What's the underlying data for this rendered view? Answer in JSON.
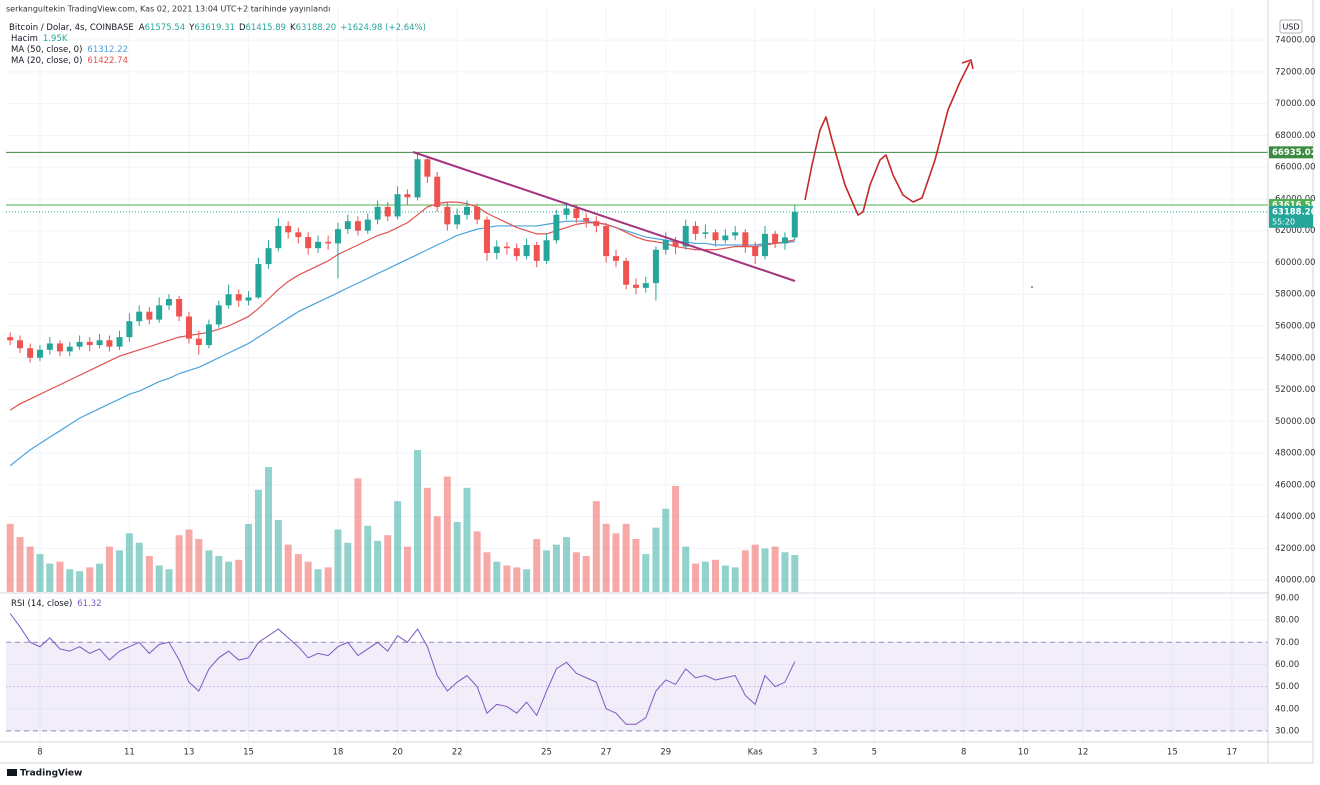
{
  "chart_data": {
    "type": "candlestick",
    "header": "serkangultekin TradingView.com, Kas 02, 2021 13:04 UTC+2 tarihinde yayınlandı",
    "title": "Bitcoin / Dolar, 4s, COINBASE",
    "ohlc_legend": [
      {
        "key": "A",
        "value": "61575.54"
      },
      {
        "key": "Y",
        "value": "63619.31"
      },
      {
        "key": "D",
        "value": "61415.89"
      },
      {
        "key": "K",
        "value": "63188.20"
      }
    ],
    "change": "+1624.98 (+2.64%)",
    "currency": "USD",
    "brand": "TradingView",
    "up_color": "#26a69a",
    "down_color": "#ef5350",
    "x": [
      7,
      7.33,
      7.67,
      8,
      8.33,
      8.67,
      9,
      9.33,
      9.67,
      10,
      10.33,
      10.67,
      11,
      11.33,
      11.67,
      12,
      12.33,
      12.67,
      13,
      13.33,
      13.67,
      14,
      14.33,
      14.67,
      15,
      15.33,
      15.67,
      16,
      16.33,
      16.67,
      17,
      17.33,
      17.67,
      18,
      18.33,
      18.67,
      19,
      19.33,
      19.67,
      20,
      20.33,
      20.67,
      21,
      21.33,
      21.67,
      22,
      22.33,
      22.67,
      23,
      23.33,
      23.67,
      24,
      24.33,
      24.67,
      25,
      25.33,
      25.67,
      26,
      26.33,
      26.67,
      27,
      27.33,
      27.67,
      28,
      28.33,
      28.67,
      29,
      29.33,
      29.67,
      30,
      30.33,
      30.67,
      31,
      31.33,
      31.67,
      32,
      32.33,
      32.67,
      33,
      33.33
    ],
    "open": [
      55300,
      55100,
      54600,
      54000,
      54500,
      54900,
      54400,
      54700,
      55000,
      54800,
      55100,
      54700,
      55300,
      56300,
      56900,
      56400,
      57300,
      57700,
      56600,
      55200,
      54800,
      56100,
      57300,
      58000,
      57600,
      57800,
      59900,
      60900,
      62300,
      61900,
      61600,
      60900,
      61300,
      61200,
      62100,
      62600,
      62000,
      62700,
      63500,
      62900,
      64300,
      64100,
      66500,
      65400,
      63500,
      62400,
      63000,
      63500,
      62700,
      60600,
      61000,
      60900,
      60400,
      61100,
      60100,
      61400,
      63000,
      63400,
      62800,
      62600,
      62300,
      60400,
      60100,
      58600,
      58400,
      58700,
      60800,
      61400,
      61000,
      62300,
      61800,
      61900,
      61400,
      61700,
      61900,
      61000,
      60400,
      61800,
      61200,
      61575.54
    ],
    "high": [
      55600,
      55400,
      54900,
      54800,
      55300,
      55100,
      55000,
      55400,
      55300,
      55500,
      55400,
      55700,
      56800,
      57300,
      57200,
      57800,
      58000,
      57900,
      56900,
      55700,
      56400,
      57600,
      58600,
      58300,
      58200,
      60300,
      61400,
      62800,
      62600,
      62200,
      61900,
      61700,
      61700,
      62500,
      63000,
      62900,
      63100,
      63900,
      63800,
      64800,
      64600,
      66950,
      66700,
      65700,
      63800,
      63400,
      63900,
      63700,
      62900,
      61400,
      61300,
      61200,
      61500,
      61300,
      61800,
      63300,
      63800,
      63600,
      63100,
      62900,
      62500,
      60800,
      60300,
      59000,
      59100,
      61000,
      61900,
      61600,
      62700,
      62600,
      62400,
      62100,
      62100,
      62300,
      62100,
      61300,
      62300,
      62000,
      61900,
      63619.31
    ],
    "low": [
      54800,
      54300,
      53700,
      53800,
      54200,
      54100,
      54100,
      54500,
      54400,
      54600,
      54400,
      54500,
      55000,
      56000,
      56100,
      56200,
      57000,
      56300,
      54900,
      54200,
      54600,
      55900,
      57100,
      57200,
      57300,
      57700,
      59600,
      60700,
      61500,
      61200,
      60500,
      60600,
      60800,
      59000,
      61800,
      61700,
      61800,
      62400,
      62600,
      62700,
      63600,
      63900,
      65000,
      63200,
      62000,
      62100,
      62700,
      62400,
      60100,
      60200,
      60500,
      60100,
      60200,
      59700,
      59900,
      61200,
      62700,
      62500,
      62200,
      61900,
      60000,
      59700,
      58300,
      58000,
      58100,
      57600,
      60500,
      60500,
      60800,
      61400,
      61500,
      61000,
      61200,
      61400,
      60600,
      59900,
      60200,
      60900,
      60800,
      61415.89
    ],
    "close": [
      55100,
      54600,
      54000,
      54500,
      54900,
      54400,
      54700,
      55000,
      54800,
      55100,
      54700,
      55300,
      56300,
      56900,
      56400,
      57300,
      57700,
      56600,
      55200,
      54800,
      56100,
      57300,
      58000,
      57600,
      57800,
      59900,
      60900,
      62300,
      61900,
      61600,
      60900,
      61300,
      61200,
      62100,
      62600,
      62000,
      62700,
      63500,
      62900,
      64300,
      64100,
      66500,
      65400,
      63500,
      62400,
      63000,
      63500,
      62700,
      60600,
      61000,
      60900,
      60400,
      61100,
      60100,
      61400,
      63000,
      63400,
      62800,
      62600,
      62300,
      60400,
      60100,
      58600,
      58400,
      58700,
      60800,
      61400,
      61000,
      62300,
      61800,
      61900,
      61400,
      61700,
      61900,
      61000,
      60400,
      61800,
      61200,
      61575.54,
      63188.2
    ],
    "volume": {
      "name": "Hacim",
      "legend_value": "1.95K",
      "values": [
        3600,
        2900,
        2400,
        2000,
        1500,
        1600,
        1200,
        1100,
        1300,
        1500,
        2400,
        2200,
        3100,
        2600,
        1900,
        1400,
        1200,
        3000,
        3300,
        2800,
        2200,
        1900,
        1600,
        1700,
        3600,
        5400,
        6600,
        3800,
        2500,
        2000,
        1600,
        1200,
        1300,
        3300,
        2600,
        6000,
        3500,
        2700,
        3000,
        4800,
        2400,
        7500,
        5500,
        4000,
        6100,
        3700,
        5500,
        3200,
        2100,
        1600,
        1400,
        1300,
        1200,
        2800,
        2200,
        2500,
        2900,
        2100,
        1900,
        4800,
        3600,
        3100,
        3600,
        2800,
        2000,
        3400,
        4400,
        5600,
        2400,
        1500,
        1600,
        1700,
        1400,
        1300,
        2200,
        2500,
        2300,
        2400,
        2100,
        1950
      ]
    },
    "series": [
      {
        "name": "MA (50, close, 0)",
        "color": "#4ca3dd",
        "legend_value": "61312.22",
        "values": [
          47200,
          47700,
          48200,
          48600,
          49000,
          49400,
          49800,
          50200,
          50500,
          50800,
          51100,
          51400,
          51700,
          51900,
          52200,
          52500,
          52700,
          53000,
          53200,
          53400,
          53700,
          54000,
          54300,
          54600,
          54900,
          55300,
          55700,
          56100,
          56500,
          56900,
          57200,
          57500,
          57800,
          58100,
          58400,
          58700,
          59000,
          59300,
          59600,
          59900,
          60200,
          60500,
          60800,
          61100,
          61400,
          61700,
          61900,
          62100,
          62200,
          62300,
          62300,
          62300,
          62300,
          62300,
          62400,
          62500,
          62600,
          62600,
          62600,
          62500,
          62400,
          62200,
          62000,
          61800,
          61600,
          61500,
          61400,
          61300,
          61300,
          61200,
          61200,
          61100,
          61100,
          61100,
          61100,
          61100,
          61200,
          61200,
          61250,
          61312.22
        ]
      },
      {
        "name": "MA (20, close, 0)",
        "color": "#e0524f",
        "legend_value": "61422.74",
        "values": [
          50700,
          51100,
          51400,
          51700,
          52000,
          52300,
          52600,
          52900,
          53200,
          53500,
          53800,
          54100,
          54300,
          54500,
          54700,
          54900,
          55100,
          55300,
          55400,
          55500,
          55600,
          55800,
          56000,
          56300,
          56600,
          57100,
          57700,
          58300,
          58800,
          59200,
          59500,
          59800,
          60100,
          60500,
          60800,
          61100,
          61400,
          61700,
          61900,
          62200,
          62500,
          63000,
          63500,
          63700,
          63800,
          63800,
          63700,
          63500,
          63100,
          62800,
          62500,
          62200,
          62000,
          61800,
          61800,
          62000,
          62200,
          62400,
          62500,
          62500,
          62400,
          62200,
          61900,
          61600,
          61400,
          61300,
          61200,
          61000,
          60900,
          60800,
          60800,
          60800,
          60900,
          61000,
          61000,
          61000,
          61100,
          61200,
          61300,
          61422.74
        ]
      }
    ],
    "xlim": [
      6.86,
      49.21
    ],
    "xticks": [
      8,
      11,
      13,
      15,
      18,
      20,
      22,
      25,
      27,
      29,
      {
        "value": 32,
        "label": "Kas"
      },
      {
        "value": 34,
        "label": "3"
      },
      {
        "value": 36,
        "label": "5"
      },
      {
        "value": 39,
        "label": "8"
      },
      {
        "value": 41,
        "label": "10"
      },
      {
        "value": 43,
        "label": "12"
      },
      {
        "value": 46,
        "label": "15"
      },
      {
        "value": 48,
        "label": "17"
      }
    ],
    "ylim": [
      39250,
      76150
    ],
    "yticks": [
      {
        "value": 40000,
        "label": "40000.00"
      },
      {
        "value": 42000,
        "label": "42000.00"
      },
      {
        "value": 44000,
        "label": "44000.00"
      },
      {
        "value": 46000,
        "label": "46000.00"
      },
      {
        "value": 48000,
        "label": "48000.00"
      },
      {
        "value": 50000,
        "label": "50000.00"
      },
      {
        "value": 52000,
        "label": "52000.00"
      },
      {
        "value": 54000,
        "label": "54000.00"
      },
      {
        "value": 56000,
        "label": "56000.00"
      },
      {
        "value": 58000,
        "label": "58000.00"
      },
      {
        "value": 60000,
        "label": "60000.00"
      },
      {
        "value": 62000,
        "label": "62000.00"
      },
      {
        "value": 64000,
        "label": "64000.00"
      },
      {
        "value": 66000,
        "label": "66000.00"
      },
      {
        "value": 68000,
        "label": "68000.00"
      },
      {
        "value": 70000,
        "label": "70000.00"
      },
      {
        "value": 72000,
        "label": "72000.00"
      },
      {
        "value": 74000,
        "label": "74000.00"
      }
    ],
    "grid": true,
    "price_lines": [
      {
        "value": 66935.02,
        "color": "#3d8b40"
      },
      {
        "value": 63616.58,
        "color": "#4caf50"
      }
    ],
    "last_price": {
      "value": 63188.2,
      "label": "63188.20",
      "countdown": "55:20",
      "color": "#26a69a"
    },
    "rsi": {
      "name": "RSI (14, close)",
      "legend_value": "61.32",
      "color": "#7e57c2",
      "values": [
        83,
        77,
        70,
        68,
        72,
        67,
        66,
        68,
        65,
        67,
        62,
        66,
        68,
        70,
        65,
        69,
        70,
        62,
        52,
        48,
        58,
        63,
        66,
        62,
        63,
        70,
        73,
        76,
        72,
        68,
        63,
        65,
        64,
        68,
        70,
        64,
        67,
        70,
        66,
        73,
        70,
        76,
        68,
        55,
        48,
        52,
        55,
        50,
        38,
        42,
        41,
        38,
        43,
        37,
        48,
        58,
        61,
        56,
        54,
        52,
        40,
        38,
        33,
        33,
        36,
        48,
        53,
        51,
        58,
        54,
        55,
        53,
        54,
        55,
        46,
        42,
        55,
        50,
        52,
        61.32
      ],
      "ylim": [
        25,
        91.8
      ],
      "yticks": [
        {
          "value": 30,
          "label": "30.00"
        },
        {
          "value": 40,
          "label": "40.00"
        },
        {
          "value": 50,
          "label": "50.00"
        },
        {
          "value": 60,
          "label": "60.00"
        },
        {
          "value": 70,
          "label": "70.00"
        },
        {
          "value": 80,
          "label": "80.00"
        },
        {
          "value": 90,
          "label": "90.00"
        }
      ],
      "band": [
        30,
        70
      ],
      "midline": 50
    }
  }
}
